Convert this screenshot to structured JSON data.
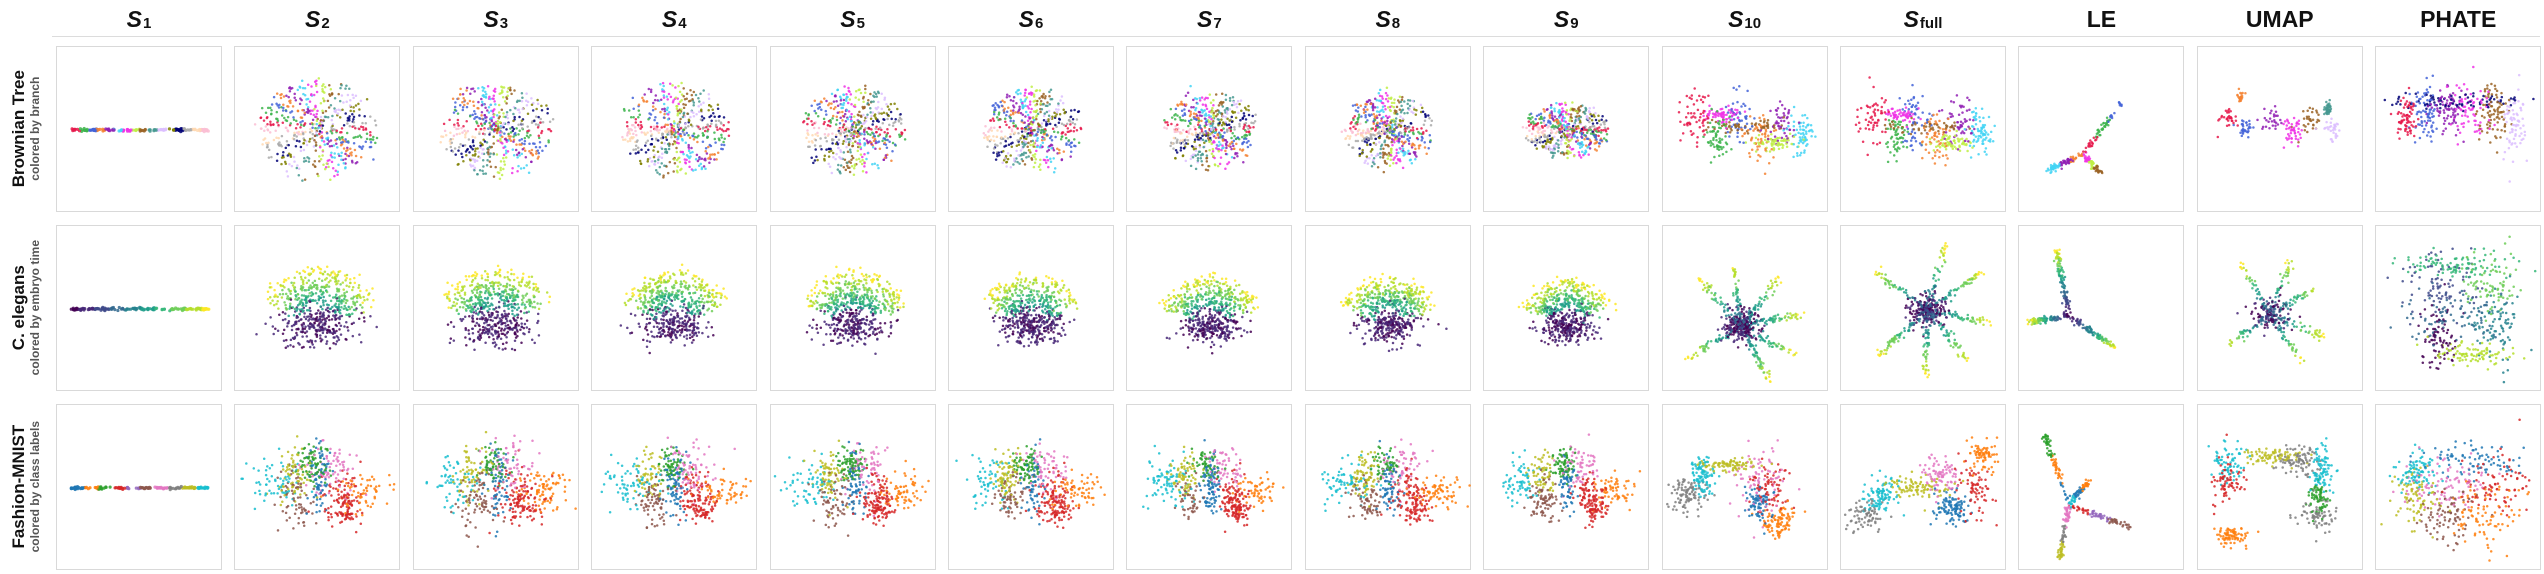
{
  "columns": [
    {
      "id": "s1",
      "base": "S",
      "sub": "1"
    },
    {
      "id": "s2",
      "base": "S",
      "sub": "2"
    },
    {
      "id": "s3",
      "base": "S",
      "sub": "3"
    },
    {
      "id": "s4",
      "base": "S",
      "sub": "4"
    },
    {
      "id": "s5",
      "base": "S",
      "sub": "5"
    },
    {
      "id": "s6",
      "base": "S",
      "sub": "6"
    },
    {
      "id": "s7",
      "base": "S",
      "sub": "7"
    },
    {
      "id": "s8",
      "base": "S",
      "sub": "8"
    },
    {
      "id": "s9",
      "base": "S",
      "sub": "9"
    },
    {
      "id": "s10",
      "base": "S",
      "sub": "10"
    },
    {
      "id": "sfull",
      "base": "S",
      "sub": "full"
    },
    {
      "id": "le",
      "base": "LE",
      "sub": ""
    },
    {
      "id": "umap",
      "base": "UMAP",
      "sub": ""
    },
    {
      "id": "phate",
      "base": "PHATE",
      "sub": ""
    }
  ],
  "rows": [
    {
      "id": "tree",
      "title": "Brownian Tree",
      "subtitle": "colored by branch"
    },
    {
      "id": "celegans",
      "title": "C. elegans",
      "subtitle": "colored by embryo time"
    },
    {
      "id": "fmnist",
      "title": "Fashion-MNIST",
      "subtitle": "colored by class labels"
    }
  ],
  "colors": {
    "branch_palette": [
      "#e6194b",
      "#3cb44b",
      "#4363d8",
      "#f58231",
      "#911eb4",
      "#42d4f4",
      "#f032e6",
      "#bfef45",
      "#9a6324",
      "#469990",
      "#dcbeff",
      "#808000",
      "#000075",
      "#a9a9a9",
      "#ffd8b1",
      "#fabed4"
    ],
    "viridis": [
      "#440154",
      "#482878",
      "#3e4989",
      "#31688e",
      "#26828e",
      "#1f9e89",
      "#35b779",
      "#6ece58",
      "#b5de2b",
      "#fde725"
    ],
    "fashion_palette": [
      "#1f77b4",
      "#ff7f0e",
      "#2ca02c",
      "#d62728",
      "#9467bd",
      "#8c564b",
      "#e377c2",
      "#7f7f7f",
      "#bcbd22",
      "#17becf"
    ],
    "panel_border": "#d9d9d9"
  },
  "chart_data": {
    "type": "scatter",
    "description_free": false,
    "grid": false,
    "legend": "none",
    "point_counts": {
      "tree": 520,
      "celegans": 600,
      "fmnist": 600
    }
  }
}
